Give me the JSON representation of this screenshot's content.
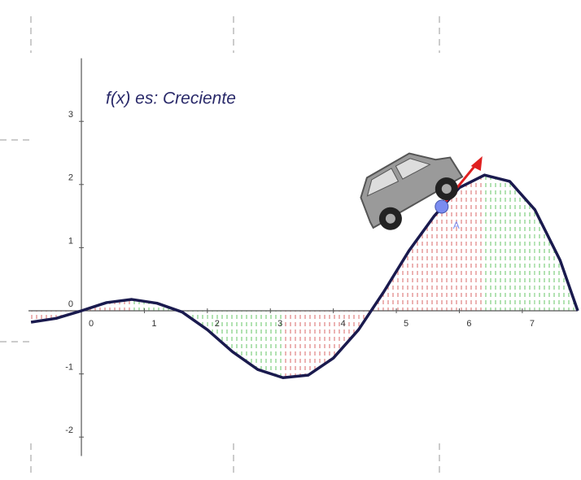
{
  "chart_data": {
    "type": "line",
    "title": "f(x) es:  Creciente",
    "x": [
      -0.8,
      -0.4,
      0,
      0.4,
      0.8,
      1.2,
      1.6,
      2.0,
      2.4,
      2.8,
      3.2,
      3.6,
      4.0,
      4.4,
      4.8,
      5.2,
      5.6,
      6.0,
      6.4,
      6.8,
      7.2,
      7.6,
      7.88
    ],
    "series": [
      {
        "color": "#1a1a4e",
        "values": [
          -0.18,
          -0.12,
          0.0,
          0.13,
          0.18,
          0.12,
          -0.02,
          -0.3,
          -0.65,
          -0.93,
          -1.06,
          -1.02,
          -0.75,
          -0.3,
          0.3,
          0.95,
          1.5,
          1.95,
          2.15,
          2.05,
          1.6,
          0.8,
          0
        ]
      }
    ],
    "point": {
      "label": "A",
      "x": 5.72,
      "y": 1.65,
      "color": "#7b8cf0"
    },
    "xlim": [
      -0.84,
      7.88
    ],
    "ylim": [
      -2.3,
      4
    ],
    "xticks": [
      0,
      1,
      2,
      3,
      4,
      5,
      6,
      7
    ],
    "yticks": [
      -2,
      -1,
      0,
      1,
      2,
      3
    ],
    "grid": false
  }
}
